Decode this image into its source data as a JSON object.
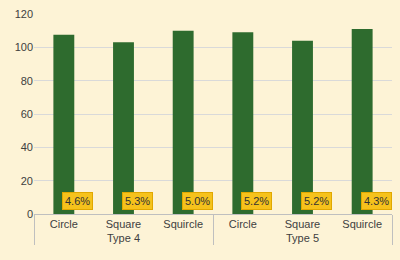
{
  "chart_data": {
    "type": "bar",
    "categories": [
      "Circle",
      "Square",
      "Squircle",
      "Circle",
      "Square",
      "Squircle"
    ],
    "groups": [
      "Type 4",
      "Type 4",
      "Type 4",
      "Type 5",
      "Type 5",
      "Type 5"
    ],
    "values": [
      107.5,
      103,
      110,
      109,
      104,
      111
    ],
    "annotations": [
      "4.6%",
      "5.3%",
      "5.0%",
      "5.2%",
      "5.2%",
      "4.3%"
    ],
    "color": "#2e6b2e",
    "ylim": [
      0,
      120
    ],
    "yticks": [
      0,
      20,
      40,
      60,
      80,
      100,
      120
    ],
    "grid": true
  }
}
